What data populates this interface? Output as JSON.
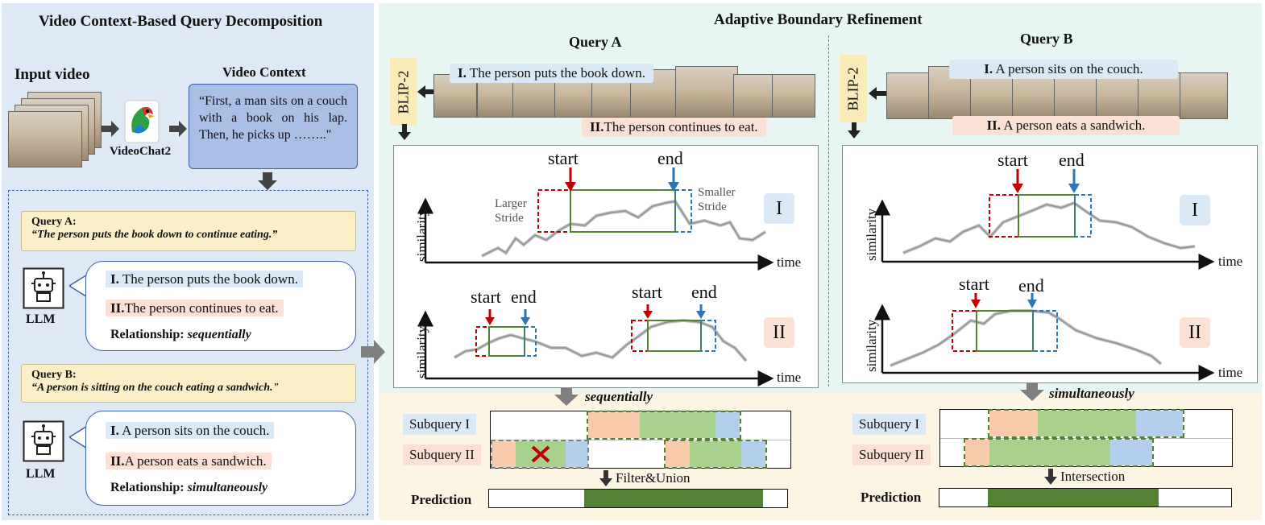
{
  "left_panel": {
    "title": "Video Context-Based Query Decomposition",
    "input_video_label": "Input video",
    "model_label": "VideoChat2",
    "context_title": "Video Context",
    "context_text": "“First, a man sits on a couch with a book on his lap. Then, he picks up ……..\"",
    "query_a": {
      "label": "Query A:",
      "text": "“The person puts the book down to continue eating.”"
    },
    "query_a_bubble": {
      "sub1_num": "I.",
      "sub1": " The person puts the book down.",
      "sub2_num": "II.",
      "sub2": "The person continues to eat.",
      "rel_label": "Relationship: ",
      "rel_value": "sequentially"
    },
    "query_b": {
      "label": "Query B:",
      "text": "“A person is sitting on the couch eating a sandwich.\""
    },
    "query_b_bubble": {
      "sub1_num": "I.",
      "sub1": " A person sits on the couch.",
      "sub2_num": "II.",
      "sub2": "A person eats a sandwich.",
      "rel_label": "Relationship: ",
      "rel_value": "simultaneously"
    },
    "llm_label": "LLM"
  },
  "right_panel": {
    "title": "Adaptive Boundary Refinement",
    "blip_label": "BLIP-2",
    "query_a": {
      "title": "Query A",
      "caption1_num": "I.",
      "caption1": " The person puts the book down.",
      "caption2_num": "II.",
      "caption2": "The person continues to eat.",
      "chart1": {
        "start": "start",
        "end": "end",
        "larger_stride": "Larger\nStride",
        "smaller_stride": "Smaller\nStride",
        "roman": "I"
      },
      "chart2": {
        "start1": "start",
        "end1": "end",
        "start2": "start",
        "end2": "end",
        "roman": "II"
      },
      "relation": "sequentially",
      "sub1_label": "Subquery I",
      "sub2_label": "Subquery II",
      "op_label": "Filter&Union",
      "prediction_label": "Prediction"
    },
    "query_b": {
      "title": "Query B",
      "caption1_num": "I.",
      "caption1": " A person sits on the couch.",
      "caption2_num": "II.",
      "caption2": " A person eats a sandwich.",
      "chart1": {
        "start": "start",
        "end": "end",
        "roman": "I"
      },
      "chart2": {
        "start": "start",
        "end": "end",
        "roman": "II"
      },
      "relation": "simultaneously",
      "sub1_label": "Subquery I",
      "sub2_label": "Subquery II",
      "op_label": "Intersection",
      "prediction_label": "Prediction"
    },
    "axis": {
      "y": "similarity",
      "x": "time"
    }
  },
  "colors": {
    "green": "#a9d18e",
    "dark_green": "#548235",
    "blue": "#b4cfec",
    "pink": "#f8cbad",
    "red": "#c00000",
    "arrow_blue": "#2e75b6",
    "navy": "#3d5fa8"
  }
}
